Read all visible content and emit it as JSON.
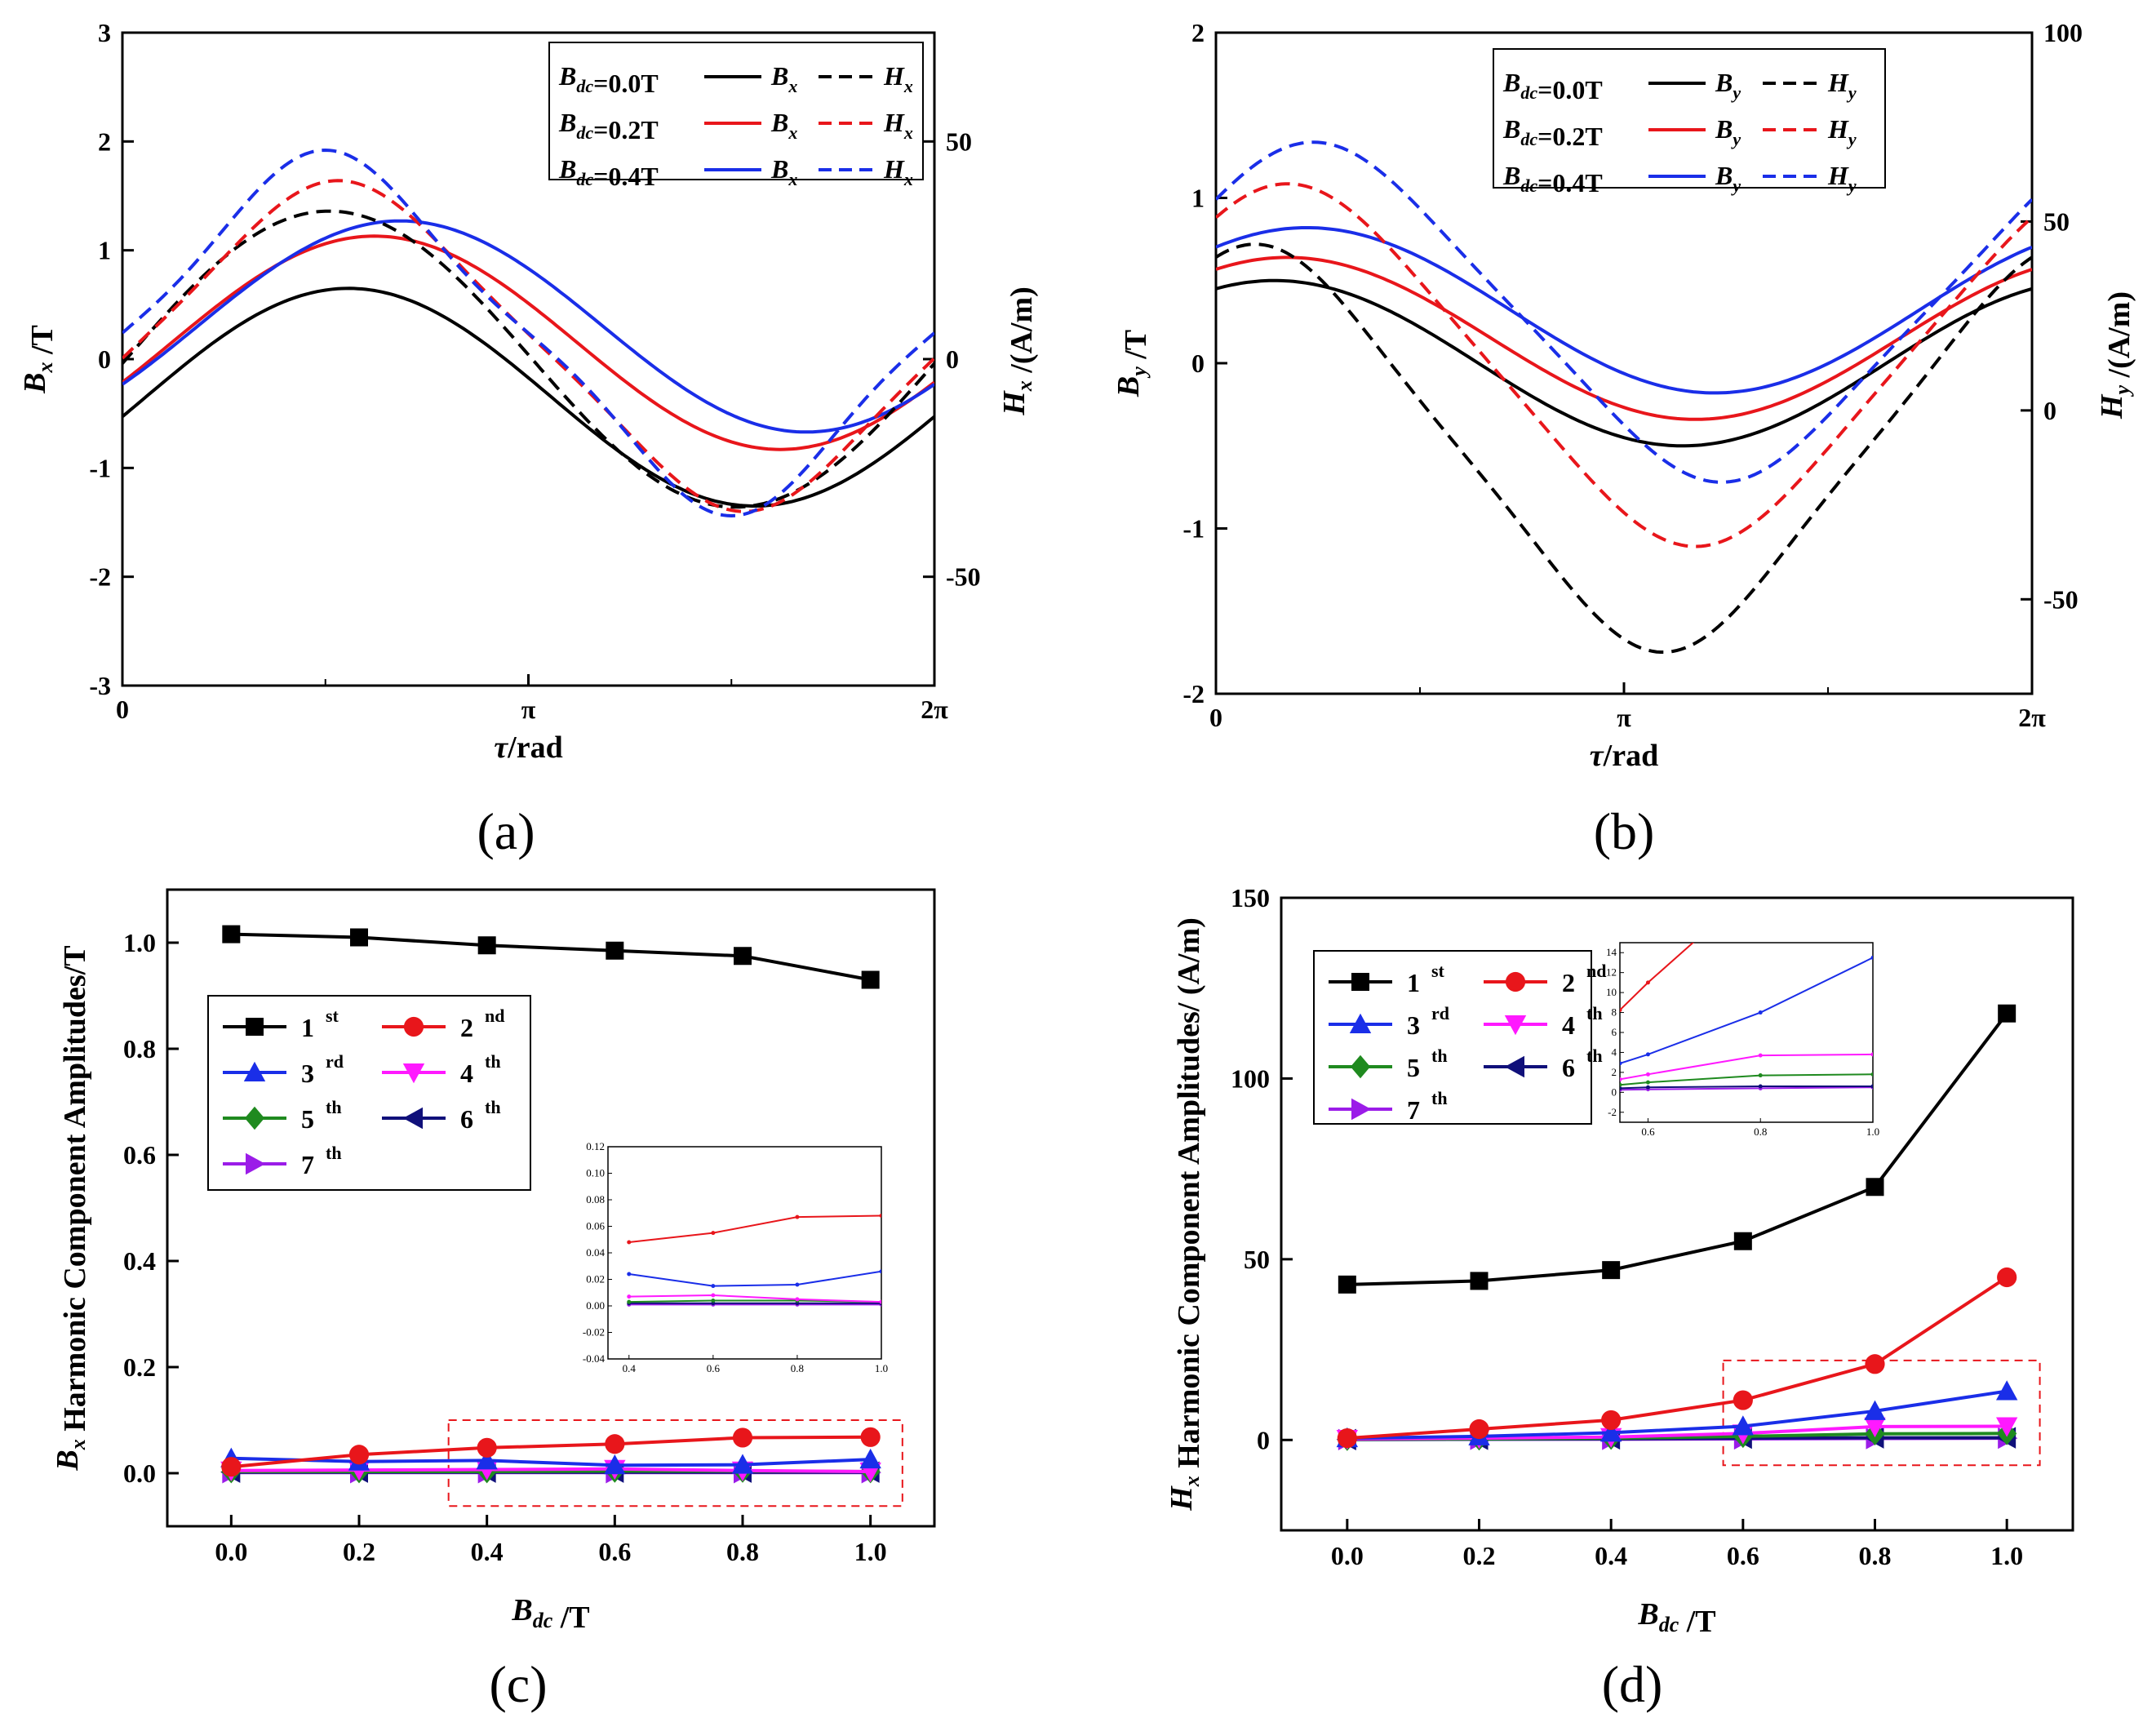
{
  "panels": [
    "(a)",
    "(b)",
    "(c)",
    "(d)"
  ],
  "chart_data": [
    {
      "id": "a",
      "type": "line",
      "xlabel": "τ/rad",
      "ylabel_left": "B_x /T",
      "ylabel_right": "H_x /(A/m)",
      "xticks": [
        "0",
        "π",
        "2π"
      ],
      "ylim_left": [
        -3,
        3
      ],
      "yticks_left": [
        "3",
        "2",
        "1",
        "0",
        "-1",
        "-2",
        "-3"
      ],
      "ylim_right": [
        -75,
        75
      ],
      "yticks_right": [
        "50",
        "0",
        "-50"
      ],
      "legend": [
        {
          "label": "B_dc=0.0T",
          "solid": "B_x",
          "dashed": "H_x",
          "color": "#000000"
        },
        {
          "label": "B_dc=0.2T",
          "solid": "B_x",
          "dashed": "H_x",
          "color": "#e8161b"
        },
        {
          "label": "B_dc=0.4T",
          "solid": "B_x",
          "dashed": "H_x",
          "color": "#1a2ee8"
        }
      ],
      "series": [
        {
          "name": "Bx 0.0T",
          "axis": "left",
          "color": "#000000",
          "dashed": false,
          "offset": -0.35,
          "amp": 1.0,
          "peak": 1.75,
          "sharp": 0
        },
        {
          "name": "Bx 0.2T",
          "axis": "left",
          "color": "#e8161b",
          "dashed": false,
          "offset": 0.15,
          "amp": 0.98,
          "peak": 1.95,
          "sharp": 0
        },
        {
          "name": "Bx 0.4T",
          "axis": "left",
          "color": "#1a2ee8",
          "dashed": false,
          "offset": 0.3,
          "amp": 0.97,
          "peak": 2.15,
          "sharp": 0
        },
        {
          "name": "Hx 0.0T",
          "axis": "right",
          "color": "#000000",
          "dashed": true,
          "offset": 0,
          "amp": 34,
          "peak": 1.6,
          "sharp": 0
        },
        {
          "name": "Hx 0.2T",
          "axis": "right",
          "color": "#e8161b",
          "dashed": true,
          "offset": 3,
          "amp": 38,
          "peak": 1.67,
          "sharp": 0.35
        },
        {
          "name": "Hx 0.4T",
          "axis": "right",
          "color": "#1a2ee8",
          "dashed": true,
          "offset": 6,
          "amp": 42,
          "peak": 1.57,
          "sharp": 0.65
        }
      ]
    },
    {
      "id": "b",
      "type": "line",
      "xlabel": "τ/rad",
      "ylabel_left": "B_y /T",
      "ylabel_right": "H_y /(A/m)",
      "xticks": [
        "0",
        "π",
        "2π"
      ],
      "ylim_left": [
        -2,
        2
      ],
      "yticks_left": [
        "2",
        "1",
        "0",
        "-1",
        "-2"
      ],
      "ylim_right": [
        -75,
        100
      ],
      "yticks_right": [
        "100",
        "50",
        "0",
        "-50"
      ],
      "legend": [
        {
          "label": "B_dc=0.0T",
          "solid": "B_y",
          "dashed": "H_y",
          "color": "#000000"
        },
        {
          "label": "B_dc=0.2T",
          "solid": "B_y",
          "dashed": "H_y",
          "color": "#e8161b"
        },
        {
          "label": "B_dc=0.4T",
          "solid": "B_y",
          "dashed": "H_y",
          "color": "#1a2ee8"
        }
      ],
      "series": [
        {
          "name": "By 0.0T",
          "axis": "left",
          "color": "#000000",
          "dashed": false,
          "offset": 0,
          "amp": 0.5,
          "peak": 0.45,
          "sharp": 0
        },
        {
          "name": "By 0.2T",
          "axis": "left",
          "color": "#e8161b",
          "dashed": false,
          "offset": 0.15,
          "amp": 0.49,
          "peak": 0.55,
          "sharp": 0
        },
        {
          "name": "By 0.4T",
          "axis": "left",
          "color": "#1a2ee8",
          "dashed": false,
          "offset": 0.32,
          "amp": 0.5,
          "peak": 0.7,
          "sharp": 0
        },
        {
          "name": "Hy 0.0T",
          "axis": "right",
          "color": "#000000",
          "dashed": true,
          "offset": -10,
          "amp": 54,
          "peak": 0.3,
          "sharp": 0.3
        },
        {
          "name": "Hy 0.2T",
          "axis": "right",
          "color": "#e8161b",
          "dashed": true,
          "offset": 12,
          "amp": 48,
          "peak": 0.55,
          "sharp": 0.2
        },
        {
          "name": "Hy 0.4T",
          "axis": "right",
          "color": "#1a2ee8",
          "dashed": true,
          "offset": 26,
          "amp": 45,
          "peak": 0.75,
          "sharp": 0.25
        }
      ]
    },
    {
      "id": "c",
      "type": "line",
      "xlabel": "B_dc /T",
      "ylabel": "B_x Harmonic Component Amplitudes/T",
      "xlim": [
        -0.1,
        1.1
      ],
      "ylim": [
        -0.1,
        1.1
      ],
      "xticks": [
        "0.0",
        "0.2",
        "0.4",
        "0.6",
        "0.8",
        "1.0"
      ],
      "yticks": [
        "0.0",
        "0.2",
        "0.4",
        "0.6",
        "0.8",
        "1.0"
      ],
      "x": [
        0.0,
        0.2,
        0.4,
        0.6,
        0.8,
        1.0
      ],
      "series": [
        {
          "name": "1",
          "sup": "st",
          "color": "#000000",
          "marker": "square",
          "values": [
            1.016,
            1.01,
            0.995,
            0.985,
            0.975,
            0.93
          ]
        },
        {
          "name": "2",
          "sup": "nd",
          "color": "#e8161b",
          "marker": "circle",
          "values": [
            0.012,
            0.035,
            0.048,
            0.055,
            0.067,
            0.068
          ]
        },
        {
          "name": "3",
          "sup": "rd",
          "color": "#1a2ee8",
          "marker": "triangle-up",
          "values": [
            0.028,
            0.022,
            0.024,
            0.015,
            0.016,
            0.026
          ]
        },
        {
          "name": "4",
          "sup": "th",
          "color": "#ff19ff",
          "marker": "triangle-down",
          "values": [
            0.005,
            0.006,
            0.007,
            0.008,
            0.005,
            0.003
          ]
        },
        {
          "name": "5",
          "sup": "th",
          "color": "#1f8a1f",
          "marker": "diamond",
          "values": [
            0.003,
            0.003,
            0.003,
            0.004,
            0.004,
            0.003
          ]
        },
        {
          "name": "6",
          "sup": "th",
          "color": "#10107a",
          "marker": "triangle-left",
          "values": [
            0.002,
            0.002,
            0.002,
            0.002,
            0.002,
            0.002
          ]
        },
        {
          "name": "7",
          "sup": "th",
          "color": "#9b1ce8",
          "marker": "triangle-right",
          "values": [
            0.001,
            0.001,
            0.001,
            0.001,
            0.001,
            0.001
          ]
        }
      ],
      "inset": {
        "xlim": [
          0.35,
          1.0
        ],
        "ylim": [
          -0.04,
          0.12
        ],
        "xticks": [
          "0.4",
          "0.6",
          "0.8",
          "1.0"
        ],
        "yticks": [
          "0.12",
          "0.10",
          "0.08",
          "0.06",
          "0.04",
          "0.02",
          "0.00",
          "-0.02",
          "-0.04"
        ]
      }
    },
    {
      "id": "d",
      "type": "line",
      "xlabel": "B_dc /T",
      "ylabel": "H_x Harmonic Component Amplitudes/ (A/m)",
      "xlim": [
        -0.1,
        1.1
      ],
      "ylim": [
        -25,
        150
      ],
      "xticks": [
        "0.0",
        "0.2",
        "0.4",
        "0.6",
        "0.8",
        "1.0"
      ],
      "yticks": [
        "150",
        "100",
        "50",
        "0"
      ],
      "x": [
        0.0,
        0.2,
        0.4,
        0.6,
        0.8,
        1.0
      ],
      "series": [
        {
          "name": "1",
          "sup": "st",
          "color": "#000000",
          "marker": "square",
          "values": [
            43,
            44,
            47,
            55,
            70,
            118
          ]
        },
        {
          "name": "2",
          "sup": "nd",
          "color": "#e8161b",
          "marker": "circle",
          "values": [
            0.5,
            3,
            5.5,
            11,
            21,
            45
          ]
        },
        {
          "name": "3",
          "sup": "rd",
          "color": "#1a2ee8",
          "marker": "triangle-up",
          "values": [
            0.5,
            1,
            2,
            3.8,
            8,
            13.5
          ]
        },
        {
          "name": "4",
          "sup": "th",
          "color": "#ff19ff",
          "marker": "triangle-down",
          "values": [
            0.3,
            0.5,
            0.8,
            1.8,
            3.7,
            3.8
          ]
        },
        {
          "name": "5",
          "sup": "th",
          "color": "#1f8a1f",
          "marker": "diamond",
          "values": [
            0.2,
            0.3,
            0.5,
            1.0,
            1.7,
            1.8
          ]
        },
        {
          "name": "6",
          "sup": "th",
          "color": "#10107a",
          "marker": "triangle-left",
          "values": [
            0.1,
            0.2,
            0.3,
            0.5,
            0.6,
            0.6
          ]
        },
        {
          "name": "7",
          "sup": "th",
          "color": "#9b1ce8",
          "marker": "triangle-right",
          "values": [
            0.1,
            0.2,
            0.2,
            0.3,
            0.4,
            0.5
          ]
        }
      ],
      "inset": {
        "xlim": [
          0.55,
          1.0
        ],
        "ylim": [
          -3,
          15
        ],
        "xticks": [
          "0.6",
          "0.8",
          "1.0"
        ],
        "yticks": [
          "14",
          "12",
          "10",
          "8",
          "6",
          "4",
          "2",
          "0",
          "-2"
        ]
      }
    }
  ]
}
